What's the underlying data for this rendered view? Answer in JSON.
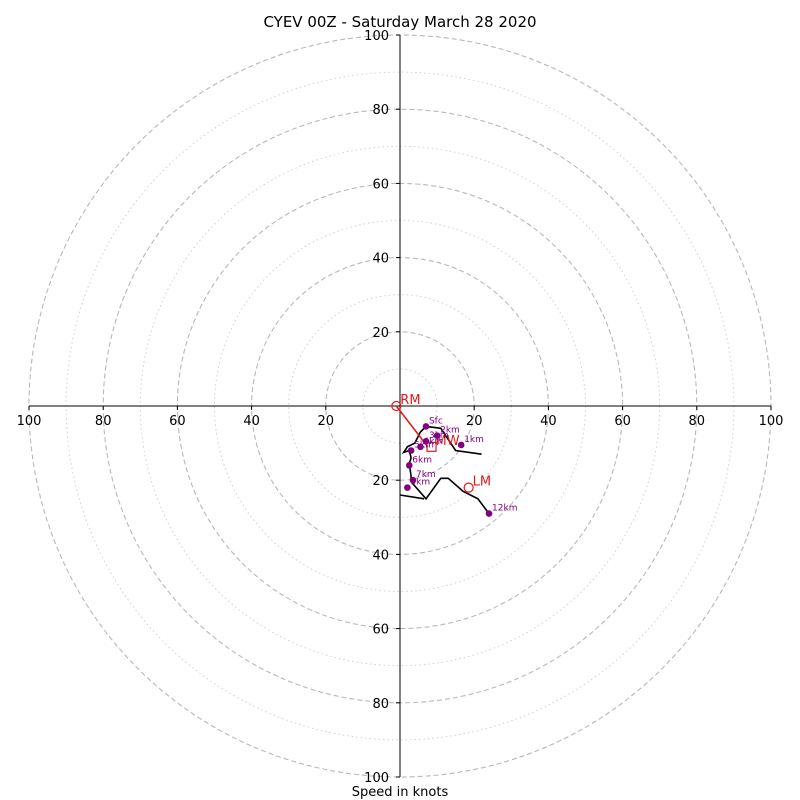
{
  "chart_data": {
    "type": "scatter",
    "title": "CYEV 00Z - Saturday March 28 2020",
    "xlabel": "Speed in knots",
    "ylabel": "",
    "xlim": [
      -100,
      100
    ],
    "ylim": [
      -100,
      100
    ],
    "ring_major_values": [
      20,
      40,
      60,
      80,
      100
    ],
    "ring_minor_values": [
      10,
      30,
      50,
      70,
      90
    ],
    "x_ticks": [
      {
        "value": -100,
        "label": "100"
      },
      {
        "value": -80,
        "label": "80"
      },
      {
        "value": -60,
        "label": "60"
      },
      {
        "value": -40,
        "label": "40"
      },
      {
        "value": -20,
        "label": "20"
      },
      {
        "value": 20,
        "label": "20"
      },
      {
        "value": 40,
        "label": "40"
      },
      {
        "value": 60,
        "label": "60"
      },
      {
        "value": 80,
        "label": "80"
      },
      {
        "value": 100,
        "label": "100"
      }
    ],
    "y_ticks": [
      {
        "value": 100,
        "label": "100"
      },
      {
        "value": 80,
        "label": "80"
      },
      {
        "value": 60,
        "label": "60"
      },
      {
        "value": 40,
        "label": "40"
      },
      {
        "value": 20,
        "label": "20"
      },
      {
        "value": -20,
        "label": "20"
      },
      {
        "value": -40,
        "label": "40"
      },
      {
        "value": -60,
        "label": "60"
      },
      {
        "value": -80,
        "label": "80"
      },
      {
        "value": -100,
        "label": "100"
      }
    ],
    "hodograph_trace": [
      [
        22,
        -13
      ],
      [
        15,
        -12
      ],
      [
        11,
        -6
      ],
      [
        7,
        -5.5
      ],
      [
        5.5,
        -7
      ],
      [
        4,
        -10
      ],
      [
        2,
        -11
      ],
      [
        1,
        -12.5
      ],
      [
        2.5,
        -12
      ],
      [
        3,
        -14
      ],
      [
        2.5,
        -15.5
      ],
      [
        3,
        -19
      ],
      [
        3,
        -20
      ],
      [
        3.5,
        -21
      ],
      [
        7,
        -25
      ],
      [
        11,
        -19.5
      ],
      [
        13,
        -19.5
      ],
      [
        17,
        -23
      ],
      [
        21,
        -25
      ],
      [
        24,
        -29
      ]
    ],
    "hodograph_trace_extra": [
      [
        0,
        -24
      ],
      [
        6.5,
        -25
      ]
    ],
    "height_markers": [
      {
        "label": "Sfc",
        "u": 7,
        "v": -5.5
      },
      {
        "label": "1km",
        "u": 16.5,
        "v": -10.5
      },
      {
        "label": "2km",
        "u": 10,
        "v": -8
      },
      {
        "label": "3km",
        "u": 7,
        "v": -9.5
      },
      {
        "label": "4km",
        "u": 5.5,
        "v": -11
      },
      {
        "label": "5km",
        "u": 3,
        "v": -12
      },
      {
        "label": "6km",
        "u": 2.5,
        "v": -16
      },
      {
        "label": "7km",
        "u": 3.5,
        "v": -20
      },
      {
        "label": "9km",
        "u": 2,
        "v": -22
      },
      {
        "label": "12km",
        "u": 24,
        "v": -29
      }
    ],
    "storm_motion": [
      {
        "label": "RM",
        "u": -1,
        "v": 0,
        "marker": "circle"
      },
      {
        "label": "LM",
        "u": 18.5,
        "v": -22,
        "marker": "circle"
      },
      {
        "label": "MW",
        "u": 8.5,
        "v": -11,
        "marker": "square"
      }
    ],
    "shear_vector": {
      "from": [
        -1,
        0
      ],
      "to": [
        7.5,
        -11
      ]
    },
    "colors": {
      "trace": "#000000",
      "markers": "#800080",
      "storm_motion": "#e31a1c",
      "rings": "#b8b8b8",
      "axes": "#000000"
    }
  }
}
